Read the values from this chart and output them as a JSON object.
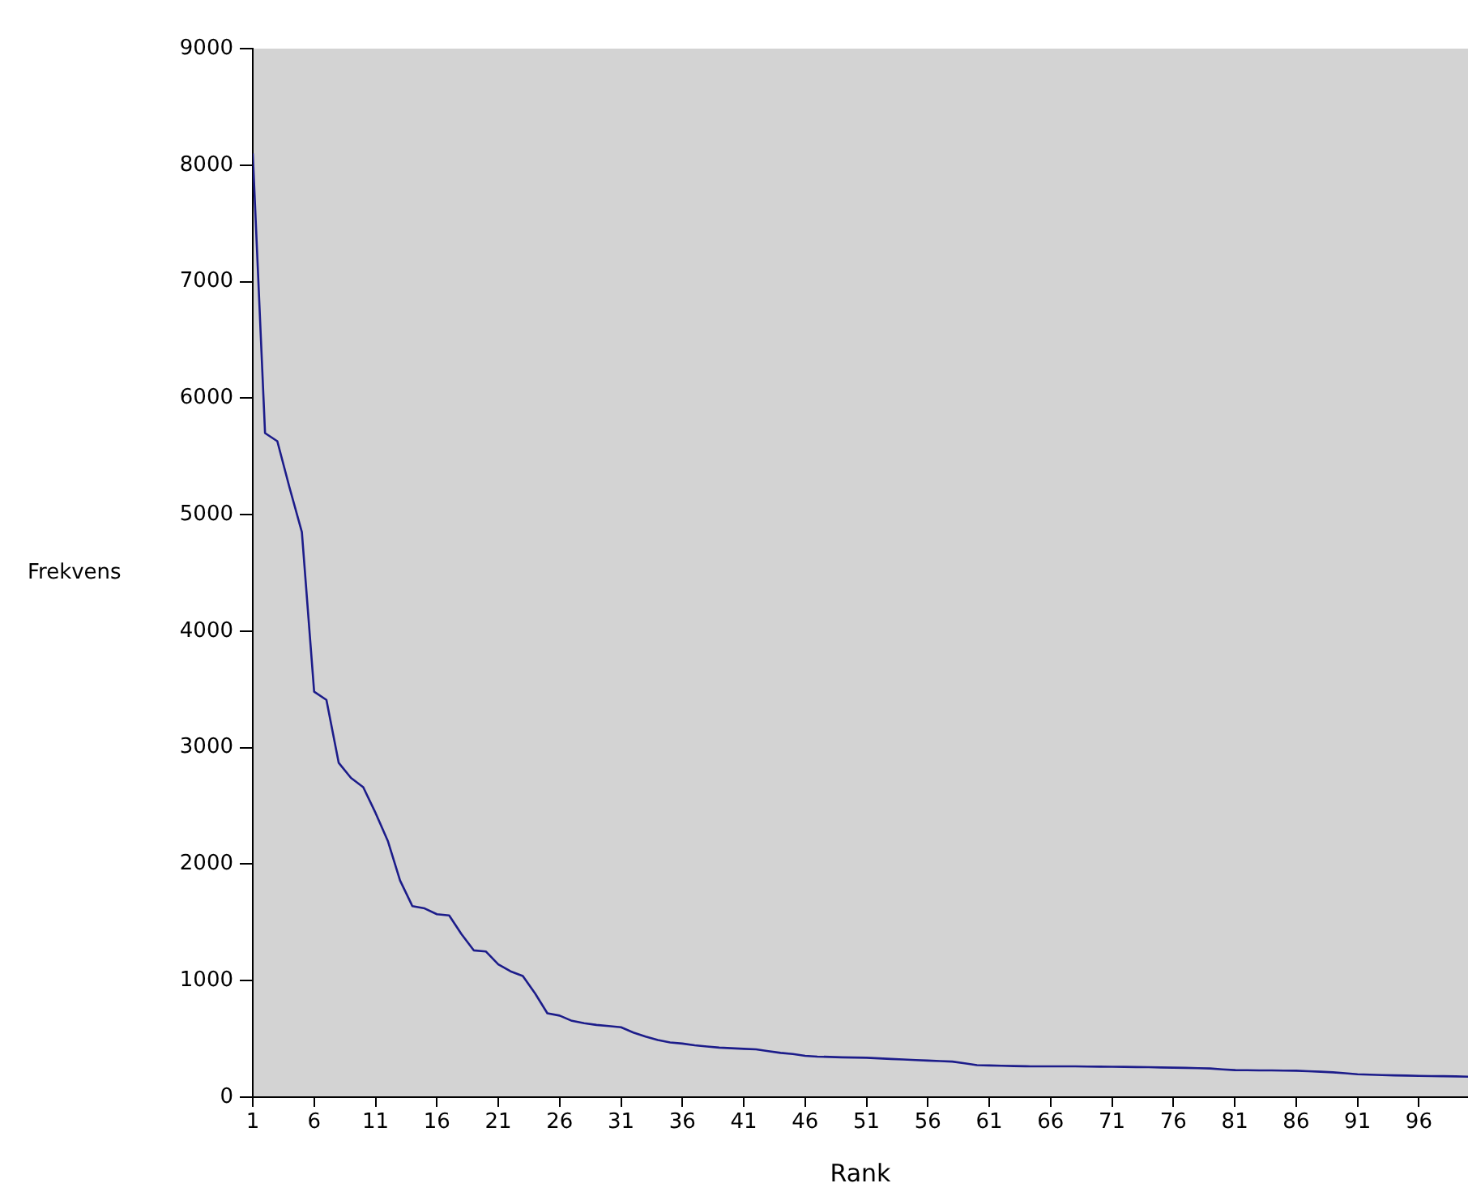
{
  "chart_data": {
    "type": "line",
    "xlabel": "Rank",
    "ylabel": "Frekvens",
    "x": [
      1,
      2,
      3,
      4,
      5,
      6,
      7,
      8,
      9,
      10,
      11,
      12,
      13,
      14,
      15,
      16,
      17,
      18,
      19,
      20,
      21,
      22,
      23,
      24,
      25,
      26,
      27,
      28,
      29,
      30,
      31,
      32,
      33,
      34,
      35,
      36,
      37,
      38,
      39,
      40,
      41,
      42,
      43,
      44,
      45,
      46,
      47,
      48,
      49,
      50,
      51,
      52,
      53,
      54,
      55,
      56,
      57,
      58,
      59,
      60,
      61,
      62,
      63,
      64,
      65,
      66,
      67,
      68,
      69,
      70,
      71,
      72,
      73,
      74,
      75,
      76,
      77,
      78,
      79,
      80,
      81,
      82,
      83,
      84,
      85,
      86,
      87,
      88,
      89,
      90,
      91,
      92,
      93,
      94,
      95,
      96,
      97,
      98,
      99,
      100
    ],
    "series": [
      {
        "color": "#1c1c8a",
        "values": [
          8100,
          5700,
          5630,
          5230,
          4850,
          3480,
          3410,
          2870,
          2740,
          2660,
          2440,
          2200,
          1860,
          1640,
          1620,
          1570,
          1560,
          1400,
          1260,
          1250,
          1140,
          1080,
          1040,
          890,
          720,
          700,
          655,
          635,
          620,
          610,
          600,
          555,
          520,
          490,
          470,
          460,
          445,
          435,
          425,
          420,
          415,
          410,
          395,
          380,
          370,
          355,
          348,
          345,
          342,
          340,
          338,
          333,
          328,
          323,
          318,
          314,
          310,
          305,
          290,
          275,
          272,
          270,
          267,
          265,
          264,
          264,
          264,
          264,
          263,
          262,
          261,
          260,
          258,
          257,
          255,
          253,
          251,
          249,
          246,
          238,
          232,
          231,
          230,
          229,
          228,
          227,
          223,
          218,
          213,
          205,
          197,
          193,
          190,
          187,
          185,
          183,
          181,
          180,
          178,
          176
        ]
      }
    ],
    "xlim": [
      1,
      100
    ],
    "xticks": [
      1,
      6,
      11,
      16,
      21,
      26,
      31,
      36,
      41,
      46,
      51,
      56,
      61,
      66,
      71,
      76,
      81,
      86,
      91,
      96
    ],
    "ylim": [
      0,
      9000
    ],
    "yticks": [
      0,
      1000,
      2000,
      3000,
      4000,
      5000,
      6000,
      7000,
      8000,
      9000
    ],
    "marker": "none",
    "line_style": "solid"
  }
}
